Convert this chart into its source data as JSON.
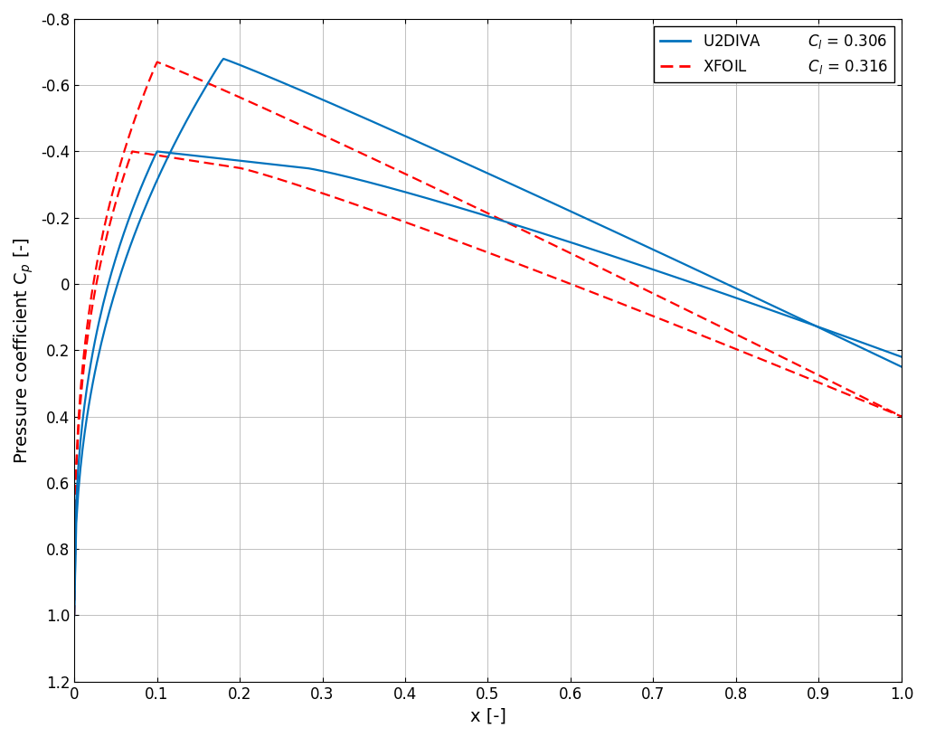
{
  "xlabel": "x [-]",
  "ylabel": "Pressure coefficient C$_p$ [-]",
  "xlim": [
    0,
    1
  ],
  "ylim": [
    1.2,
    -0.8
  ],
  "yticks": [
    -0.8,
    -0.6,
    -0.4,
    -0.2,
    0.0,
    0.2,
    0.4,
    0.6,
    0.8,
    1.0,
    1.2
  ],
  "xticks": [
    0,
    0.1,
    0.2,
    0.3,
    0.4,
    0.5,
    0.6,
    0.7,
    0.8,
    0.9,
    1.0
  ],
  "u2diva_color": "#0072BD",
  "xfoil_color": "#FF0000",
  "line_width": 1.6,
  "background_color": "#ffffff",
  "grid_color": "#b0b0b0"
}
